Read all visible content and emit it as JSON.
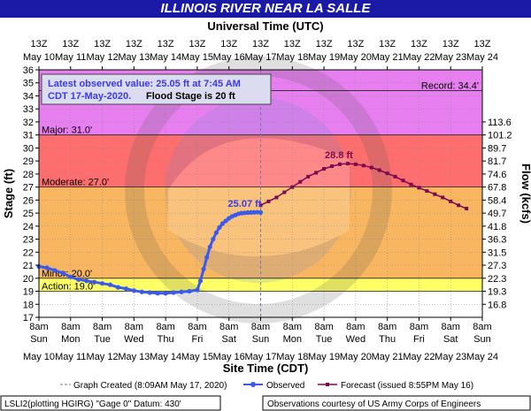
{
  "header": {
    "title": "ILLINOIS RIVER NEAR LA SALLE",
    "top_axis_title": "Universal Time (UTC)",
    "bottom_axis_title": "Site Time (CDT)",
    "left_axis_title": "Stage (ft)",
    "right_axis_title": "Flow (kcfs)"
  },
  "info_box": {
    "line1": "Latest observed value: 25.05 ft at 7:45 AM",
    "line2a": "CDT 17-May-2020.",
    "line2b": "Flood Stage is 20 ft"
  },
  "footer": {
    "created": "Graph Created (8:09AM May 17, 2020)",
    "observed": "Observed",
    "forecast": "Forecast (issued 8:55PM May 16)",
    "station": "LSLI2(plotting HGIRG) \"Gage 0\" Datum: 430'",
    "credit": "Observations courtesy of US Army Corps of Engineers"
  },
  "colors": {
    "title_bg": "#1a1aa6",
    "record_band": "#e77ff0",
    "major_band": "#ff6e6e",
    "moderate_band": "#f9b660",
    "minor_band": "#ffff66",
    "observed": "#3a5aeb",
    "forecast": "#7a0a52",
    "label_blue": "#3a3ae6"
  },
  "chart_data": {
    "type": "line",
    "title": "ILLINOIS RIVER NEAR LA SALLE",
    "xlabel": "Site Time (CDT)",
    "x2label": "Universal Time (UTC)",
    "ylabel": "Stage (ft)",
    "y2label": "Flow (kcfs)",
    "ylim": [
      17,
      36
    ],
    "y_ticks": [
      17,
      18,
      19,
      20,
      21,
      22,
      23,
      24,
      25,
      26,
      27,
      28,
      29,
      30,
      31,
      32,
      33,
      34,
      35,
      36
    ],
    "x_range": [
      "2020-05-10 08:00",
      "2020-05-24 08:00"
    ],
    "bottom_ticks": [
      {
        "t": "8am",
        "d": "Sun",
        "m": "May 10"
      },
      {
        "t": "8am",
        "d": "Mon",
        "m": "May 11"
      },
      {
        "t": "8am",
        "d": "Tue",
        "m": "May 12"
      },
      {
        "t": "8am",
        "d": "Wed",
        "m": "May 13"
      },
      {
        "t": "8am",
        "d": "Thu",
        "m": "May 14"
      },
      {
        "t": "8am",
        "d": "Fri",
        "m": "May 15"
      },
      {
        "t": "8am",
        "d": "Sat",
        "m": "May 16"
      },
      {
        "t": "8am",
        "d": "Sun",
        "m": "May 17"
      },
      {
        "t": "8am",
        "d": "Mon",
        "m": "May 18"
      },
      {
        "t": "8am",
        "d": "Tue",
        "m": "May 19"
      },
      {
        "t": "8am",
        "d": "Wed",
        "m": "May 20"
      },
      {
        "t": "8am",
        "d": "Thu",
        "m": "May 21"
      },
      {
        "t": "8am",
        "d": "Fri",
        "m": "May 22"
      },
      {
        "t": "8am",
        "d": "Sat",
        "m": "May 23"
      },
      {
        "t": "8am",
        "d": "Sun",
        "m": "May 24"
      }
    ],
    "top_ticks": [
      {
        "t": "13Z",
        "m": "May 10"
      },
      {
        "t": "13Z",
        "m": "May 11"
      },
      {
        "t": "13Z",
        "m": "May 12"
      },
      {
        "t": "13Z",
        "m": "May 13"
      },
      {
        "t": "13Z",
        "m": "May 14"
      },
      {
        "t": "13Z",
        "m": "May 15"
      },
      {
        "t": "13Z",
        "m": "May 16"
      },
      {
        "t": "13Z",
        "m": "May 17"
      },
      {
        "t": "13Z",
        "m": "May 18"
      },
      {
        "t": "13Z",
        "m": "May 19"
      },
      {
        "t": "13Z",
        "m": "May 20"
      },
      {
        "t": "13Z",
        "m": "May 21"
      },
      {
        "t": "13Z",
        "m": "May 22"
      },
      {
        "t": "13Z",
        "m": "May 23"
      },
      {
        "t": "13Z",
        "m": "May 24"
      }
    ],
    "flow_ticks": [
      {
        "stage": 18,
        "label": "16.8"
      },
      {
        "stage": 19,
        "label": "19.3"
      },
      {
        "stage": 20,
        "label": "22.3"
      },
      {
        "stage": 21,
        "label": "27.3"
      },
      {
        "stage": 22,
        "label": "31.5"
      },
      {
        "stage": 23,
        "label": "36.3"
      },
      {
        "stage": 24,
        "label": "41.8"
      },
      {
        "stage": 25,
        "label": "49.7"
      },
      {
        "stage": 26,
        "label": "58.4"
      },
      {
        "stage": 27,
        "label": "67.8"
      },
      {
        "stage": 28,
        "label": "74.6"
      },
      {
        "stage": 29,
        "label": "81.7"
      },
      {
        "stage": 30,
        "label": "89.7"
      },
      {
        "stage": 31,
        "label": "101.2"
      },
      {
        "stage": 32,
        "label": "113.6"
      }
    ],
    "thresholds": [
      {
        "name": "Record",
        "label": "Record: 34.4'",
        "value": 34.4
      },
      {
        "name": "Major",
        "label": "Major: 31.0'",
        "value": 31.0
      },
      {
        "name": "Moderate",
        "label": "Moderate: 27.0'",
        "value": 27.0
      },
      {
        "name": "Minor",
        "label": "Minor: 20.0'",
        "value": 20.0
      },
      {
        "name": "Action",
        "label": "Action: 19.0'",
        "value": 19.0
      }
    ],
    "observed_label": "25.07 ft",
    "forecast_label": "28.8 ft",
    "created_day": 7.0,
    "series": [
      {
        "name": "Observed",
        "x_days": [
          0.0,
          0.25,
          0.5,
          0.75,
          1.0,
          1.25,
          1.5,
          1.75,
          2.0,
          2.25,
          2.5,
          2.75,
          3.0,
          3.25,
          3.5,
          3.75,
          4.0,
          4.25,
          4.5,
          4.75,
          5.0,
          5.1,
          5.2,
          5.3,
          5.4,
          5.5,
          5.6,
          5.7,
          5.8,
          5.9,
          6.0,
          6.1,
          6.2,
          6.3,
          6.4,
          6.5,
          6.6,
          6.7,
          6.8,
          6.9,
          7.0
        ],
        "values": [
          20.9,
          20.8,
          20.6,
          20.4,
          20.1,
          19.9,
          19.8,
          19.7,
          19.6,
          19.5,
          19.3,
          19.2,
          19.05,
          18.95,
          18.9,
          18.85,
          18.85,
          18.9,
          18.95,
          19.0,
          19.1,
          19.8,
          20.7,
          21.6,
          22.4,
          23.0,
          23.5,
          23.9,
          24.2,
          24.4,
          24.6,
          24.75,
          24.85,
          24.95,
          25.0,
          25.02,
          25.04,
          25.05,
          25.06,
          25.07,
          25.05
        ]
      },
      {
        "name": "Forecast",
        "x_days": [
          7.0,
          7.25,
          7.5,
          7.75,
          8.0,
          8.25,
          8.5,
          8.75,
          9.0,
          9.25,
          9.5,
          9.75,
          10.0,
          10.25,
          10.5,
          10.75,
          11.0,
          11.25,
          11.5,
          11.75,
          12.0,
          12.25,
          12.5,
          12.75,
          13.0,
          13.25,
          13.5
        ],
        "values": [
          25.6,
          25.9,
          26.2,
          26.6,
          27.0,
          27.4,
          27.8,
          28.1,
          28.4,
          28.6,
          28.75,
          28.8,
          28.75,
          28.65,
          28.5,
          28.3,
          28.05,
          27.8,
          27.5,
          27.2,
          26.95,
          26.7,
          26.45,
          26.2,
          25.9,
          25.6,
          25.35
        ]
      }
    ]
  }
}
